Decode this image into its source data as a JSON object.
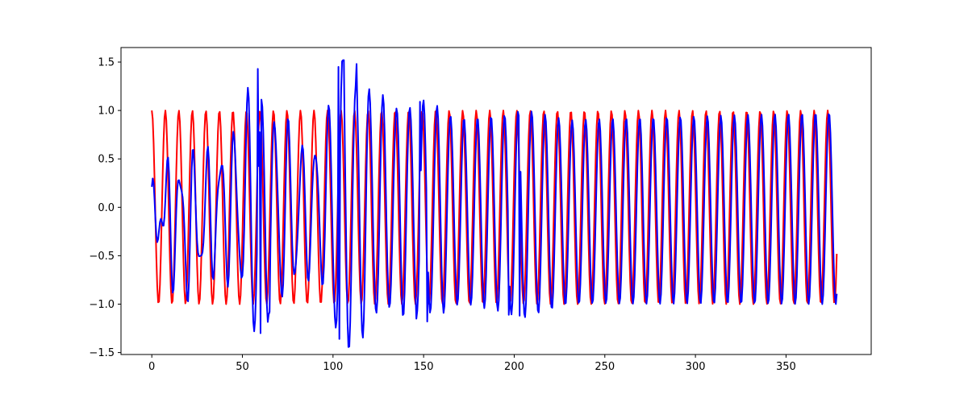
{
  "chart_data": {
    "type": "line",
    "title": "",
    "xlabel": "",
    "ylabel": "",
    "xlim": [
      -17,
      397
    ],
    "ylim": [
      -1.52,
      1.65
    ],
    "grid": false,
    "x_ticks": [
      0,
      50,
      100,
      150,
      200,
      250,
      300,
      350
    ],
    "x_tick_labels": [
      "0",
      "50",
      "100",
      "150",
      "200",
      "250",
      "300",
      "350"
    ],
    "y_ticks": [
      -1.5,
      -1.0,
      -0.5,
      0.0,
      0.5,
      1.0,
      1.5
    ],
    "y_tick_labels": [
      "−1.5",
      "−1.0",
      "−0.5",
      "0.0",
      "0.5",
      "1.0",
      "1.5"
    ],
    "series": [
      {
        "color": "#ff0000",
        "x_range": [
          0,
          378
        ],
        "x_step": 0.5,
        "function": "cos",
        "period": 7.46,
        "amplitude": 1.0
      },
      {
        "color": "#0000ff",
        "x_range": [
          0,
          378
        ],
        "x_step": 0.5,
        "period": 7.46,
        "phase_lag": 0.6,
        "amplitude_profile": [
          [
            0,
            0.08
          ],
          [
            10,
            0.55
          ],
          [
            20,
            0.65
          ],
          [
            30,
            0.55
          ],
          [
            40,
            0.6
          ],
          [
            50,
            0.85
          ],
          [
            58,
            1.42
          ],
          [
            62,
            1.05
          ],
          [
            72,
            0.9
          ],
          [
            85,
            0.6
          ],
          [
            95,
            0.75
          ],
          [
            102,
            1.4
          ],
          [
            106,
            1.5
          ],
          [
            115,
            1.3
          ],
          [
            130,
            1.05
          ],
          [
            145,
            1.08
          ],
          [
            155,
            1.1
          ],
          [
            170,
            0.95
          ],
          [
            195,
            1.02
          ],
          [
            205,
            1.08
          ],
          [
            230,
            0.95
          ],
          [
            378,
            0.99
          ]
        ],
        "offset_profile": [
          [
            0,
            -0.05
          ],
          [
            10,
            -0.1
          ],
          [
            20,
            -0.2
          ],
          [
            30,
            -0.1
          ],
          [
            40,
            0.0
          ],
          [
            60,
            0.0
          ],
          [
            80,
            -0.05
          ],
          [
            100,
            0.0
          ],
          [
            130,
            0.0
          ],
          [
            200,
            -0.07
          ],
          [
            250,
            -0.04
          ],
          [
            378,
            -0.01
          ]
        ],
        "notable_points": [
          [
            58.5,
            1.43
          ],
          [
            60,
            -1.3
          ],
          [
            65,
            -1.08
          ],
          [
            103,
            1.45
          ],
          [
            103.5,
            -1.36
          ],
          [
            106,
            1.52
          ],
          [
            113,
            1.48
          ],
          [
            148,
            1.09
          ],
          [
            152,
            -1.18
          ],
          [
            146,
            -1.15
          ],
          [
            197,
            -1.11
          ],
          [
            203,
            -1.12
          ]
        ]
      }
    ]
  }
}
